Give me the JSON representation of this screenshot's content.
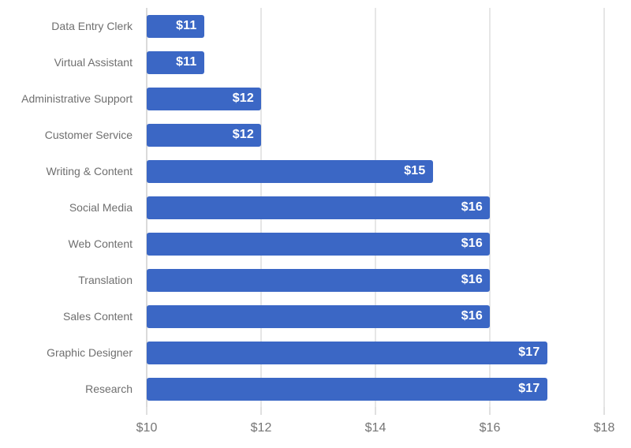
{
  "chart_data": {
    "type": "bar",
    "orientation": "horizontal",
    "title": "",
    "xlabel": "",
    "ylabel": "",
    "categories": [
      "Data Entry Clerk",
      "Virtual Assistant",
      "Administrative Support",
      "Customer Service",
      "Writing & Content",
      "Social Media",
      "Web Content",
      "Translation",
      "Sales Content",
      "Graphic Designer",
      "Research"
    ],
    "values": [
      11,
      11,
      12,
      12,
      15,
      16,
      16,
      16,
      16,
      17,
      17
    ],
    "value_labels": [
      "$11",
      "$11",
      "$12",
      "$12",
      "$15",
      "$16",
      "$16",
      "$16",
      "$16",
      "$17",
      "$17"
    ],
    "axis": {
      "min": 10,
      "max": 18,
      "ticks": [
        10,
        12,
        14,
        16,
        18
      ],
      "tick_labels": [
        "$10",
        "$12",
        "$14",
        "$16",
        "$18"
      ]
    },
    "grid": true,
    "legend": "none",
    "colors": {
      "bar": "#3B67C5",
      "gridline": "#CCCCCC",
      "baseline": "#B5B5B5",
      "tickmark": "#C2C2C2",
      "category_label": "#6F6F6F",
      "tick_label": "#757575",
      "value_label": "#FFFFFF",
      "background": "#FFFFFF"
    }
  }
}
